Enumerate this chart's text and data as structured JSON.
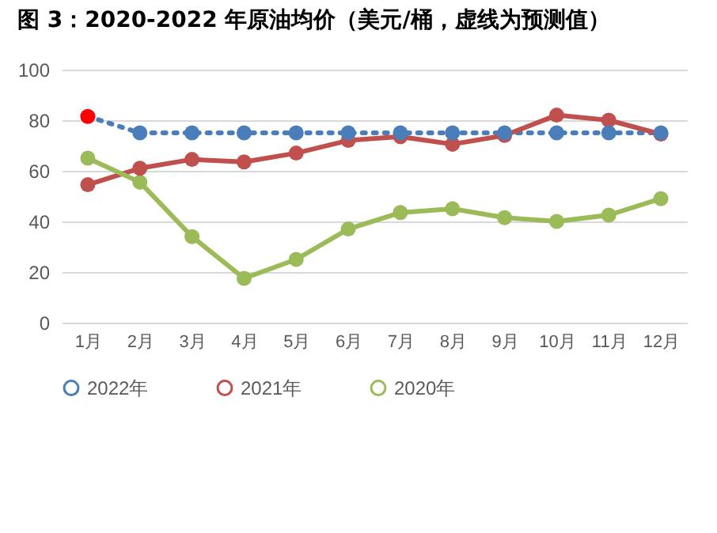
{
  "chart_data": {
    "type": "line",
    "title": "图 3：2020-2022 年原油均价（美元/桶，虚线为预测值）",
    "categories": [
      "1月",
      "2月",
      "3月",
      "4月",
      "5月",
      "6月",
      "7月",
      "8月",
      "9月",
      "10月",
      "11月",
      "12月"
    ],
    "series": [
      {
        "name": "2022年",
        "color": "#4a7ebb",
        "line_style": "dotted",
        "colors": [
          "#ff0000",
          "#4a7ebb",
          "#4a7ebb",
          "#4a7ebb",
          "#4a7ebb",
          "#4a7ebb",
          "#4a7ebb",
          "#4a7ebb",
          "#4a7ebb",
          "#4a7ebb",
          "#4a7ebb",
          "#4a7ebb"
        ],
        "values": [
          81.5,
          75,
          75,
          75,
          75,
          75,
          75,
          75,
          75,
          75,
          75,
          75
        ]
      },
      {
        "name": "2021年",
        "color": "#c0504d",
        "line_style": "solid",
        "values": [
          54.5,
          61,
          64.5,
          63.5,
          67,
          72,
          73.5,
          70.5,
          74,
          82,
          80,
          74.5
        ]
      },
      {
        "name": "2020年",
        "color": "#9bbb59",
        "line_style": "solid",
        "values": [
          65,
          55.5,
          34,
          17.5,
          25,
          37,
          43.5,
          45,
          41.5,
          40,
          42.5,
          49
        ]
      }
    ],
    "ylim": [
      0,
      100
    ],
    "yticks": [
      0,
      20,
      40,
      60,
      80,
      100
    ],
    "grid": "y",
    "legend": "bottom",
    "marker": "circle"
  }
}
